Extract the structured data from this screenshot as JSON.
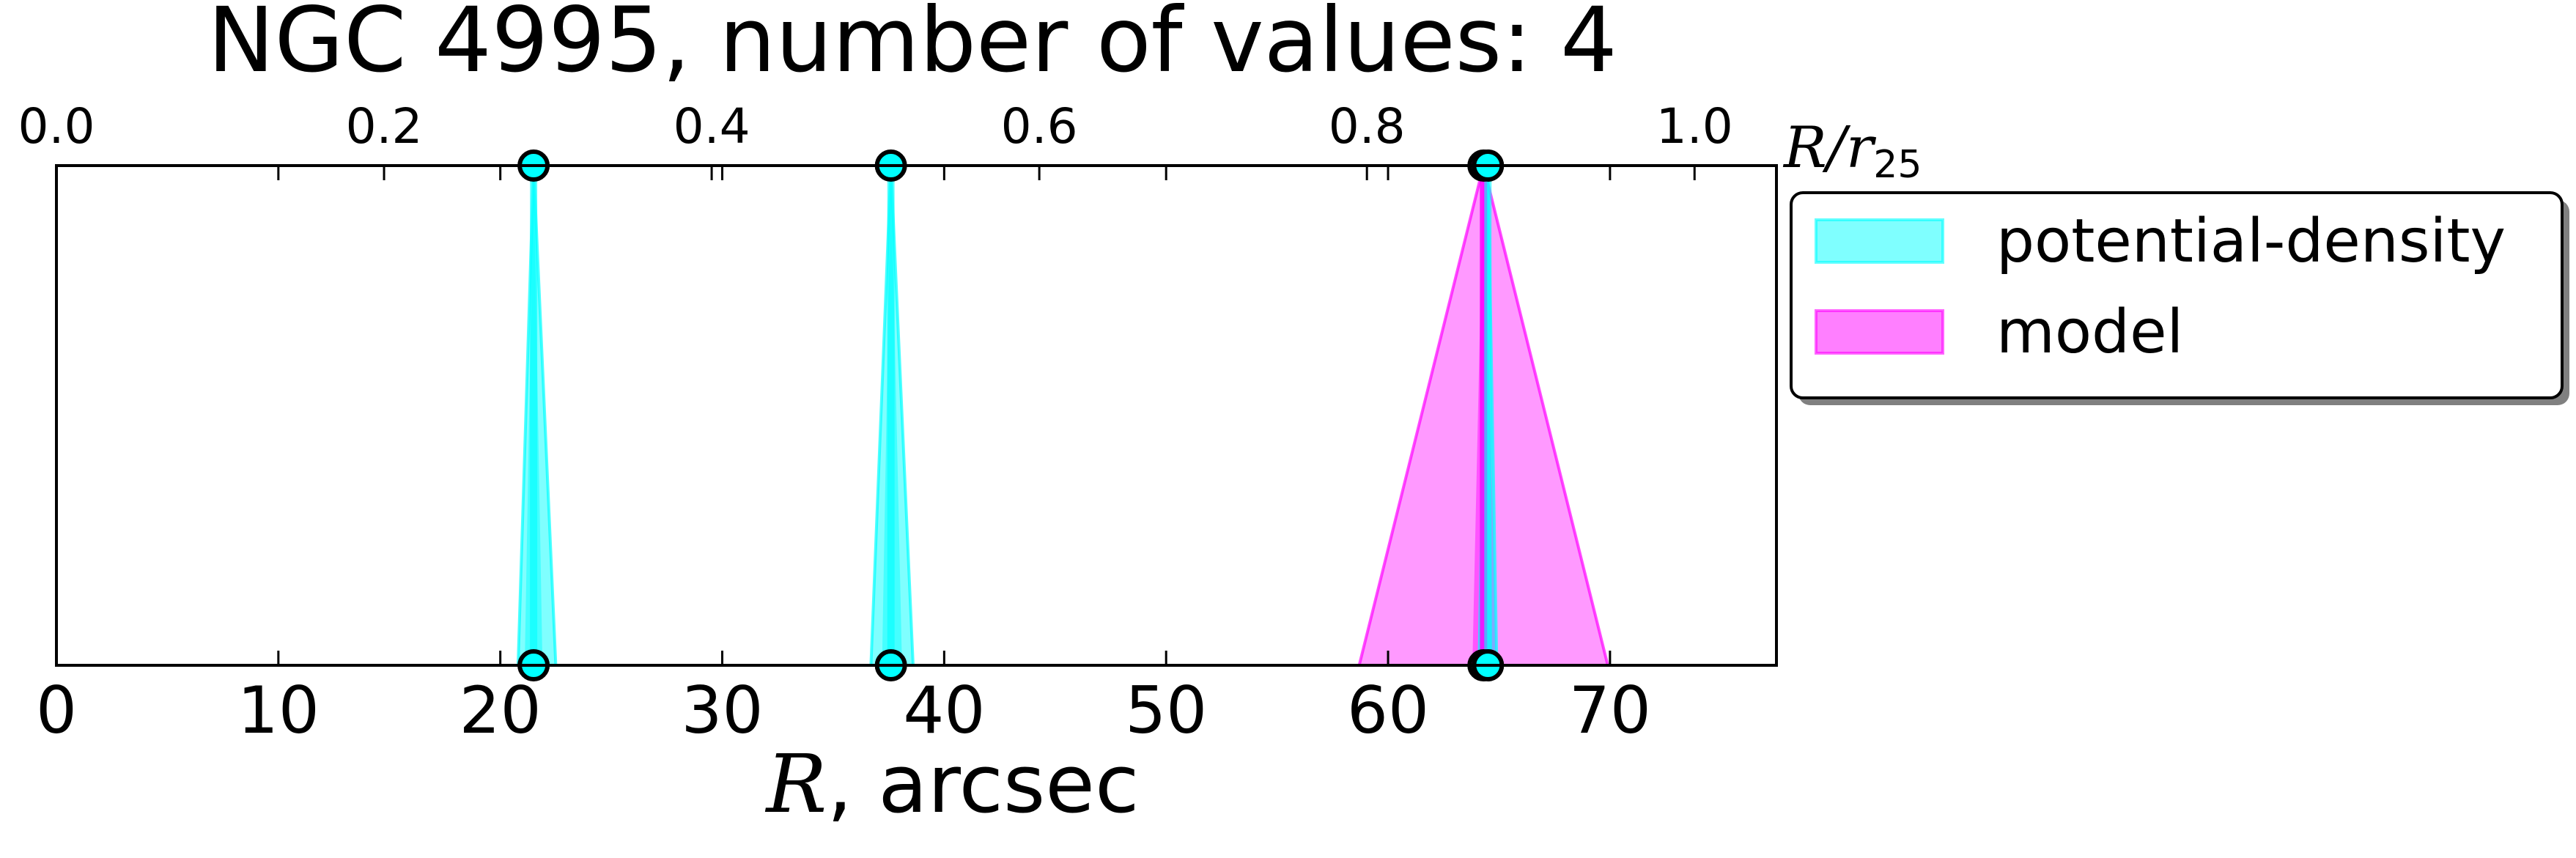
{
  "chart_data": {
    "type": "area",
    "title": "NGC 4995, number of values: 4",
    "xlabel_var": "R",
    "xlabel_unit": ", arcsec",
    "top_axis_label_var": "R/r",
    "top_axis_label_sub": "25",
    "xlim": [
      0,
      77.5
    ],
    "top_xlim": [
      0.0,
      1.05
    ],
    "x_ticks": [
      "0",
      "10",
      "20",
      "30",
      "40",
      "50",
      "60",
      "70"
    ],
    "top_ticks": [
      "0.0",
      "0.2",
      "0.4",
      "0.6",
      "0.8",
      "1.0"
    ],
    "legend_position": "right of plot, top",
    "colors": {
      "potential-density": "#00ffff",
      "model": "#ff00ff"
    },
    "series": [
      {
        "name": "potential-density",
        "peaks": [
          {
            "x": 21.5,
            "base_left": 20.8,
            "base_right": 22.5,
            "core_left": 21.1,
            "core_right": 21.9
          },
          {
            "x": 37.6,
            "base_left": 36.7,
            "base_right": 38.6,
            "core_left": 37.2,
            "core_right": 38.1
          },
          {
            "x": 64.5,
            "base_left": 64.1,
            "base_right": 64.9,
            "core_left": 64.3,
            "core_right": 64.7
          }
        ]
      },
      {
        "name": "model",
        "peaks": [
          {
            "x": 64.3,
            "base_left": 58.7,
            "base_right": 69.9,
            "core_left": 63.8,
            "core_right": 64.9
          }
        ]
      }
    ]
  }
}
